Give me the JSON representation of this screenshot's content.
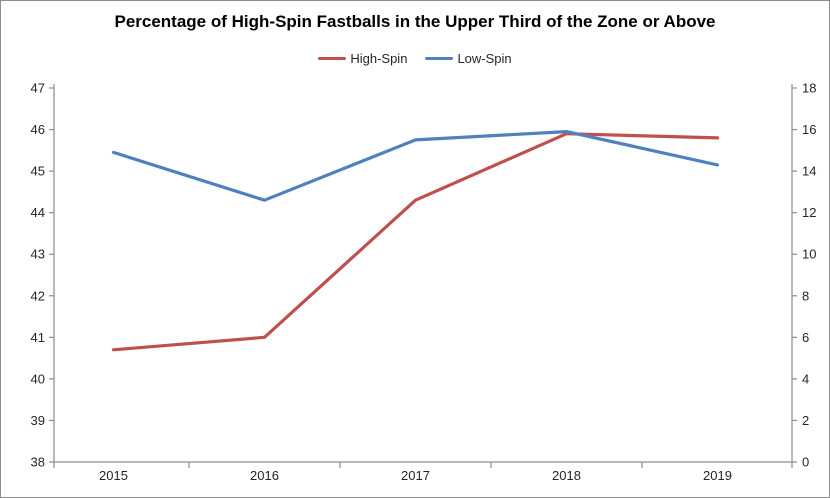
{
  "chart_data": {
    "type": "line",
    "title": "Percentage of High-Spin Fastballs in the Upper Third of the Zone or Above",
    "categories": [
      "2015",
      "2016",
      "2017",
      "2018",
      "2019"
    ],
    "series": [
      {
        "name": "High-Spin",
        "axis": "left",
        "color": "#C0504D",
        "values": [
          40.7,
          41.0,
          44.3,
          45.9,
          45.8
        ]
      },
      {
        "name": "Low-Spin",
        "axis": "right",
        "color": "#4F81BD",
        "values": [
          14.9,
          12.6,
          15.5,
          15.9,
          14.3
        ]
      }
    ],
    "left_axis": {
      "min": 38,
      "max": 47,
      "step": 1,
      "tick_labels": [
        "47",
        "46",
        "45",
        "44",
        "43",
        "42",
        "41",
        "40",
        "39",
        "38"
      ]
    },
    "right_axis": {
      "min": 0,
      "max": 18,
      "step": 2,
      "tick_labels": [
        "18",
        "16",
        "14",
        "12",
        "10",
        "8",
        "6",
        "4",
        "2",
        "0"
      ]
    },
    "legend_position": "top",
    "grid": false,
    "colors": {
      "axis_line": "#8C8C8C",
      "tick_text": "#262626",
      "title_text": "#000000",
      "background": "#FFFFFF",
      "chart_border": "#8C8C8C"
    }
  }
}
